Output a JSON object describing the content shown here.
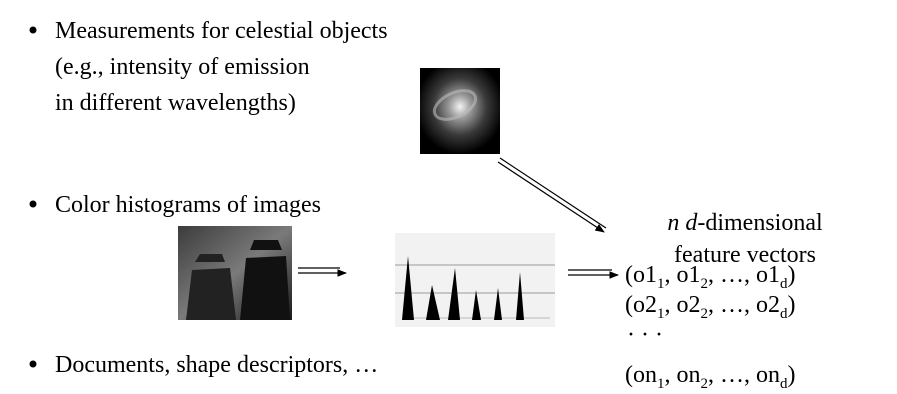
{
  "bullets": [
    {
      "lines": [
        "Measurements for celestial objects",
        "(e.g., intensity of emission",
        "in different wavelengths)"
      ]
    },
    {
      "lines": [
        "Color histograms of images"
      ]
    },
    {
      "lines": [
        "Documents, shape descriptors, …"
      ]
    }
  ],
  "output": {
    "title": [
      "n",
      "d",
      "-dimensional"
    ],
    "subtitle": "feature vectors",
    "vectors": [
      [
        "(o1",
        "1",
        ", o1",
        "2",
        ", …, o1",
        "d",
        ")"
      ],
      [
        "(o2",
        "1",
        ", o2",
        "2",
        ", …, o2",
        "d",
        ")"
      ],
      [
        "(on",
        "1",
        ", on",
        "2",
        ", …, on",
        "d",
        ")"
      ]
    ],
    "ellipsis": "· · ·"
  }
}
